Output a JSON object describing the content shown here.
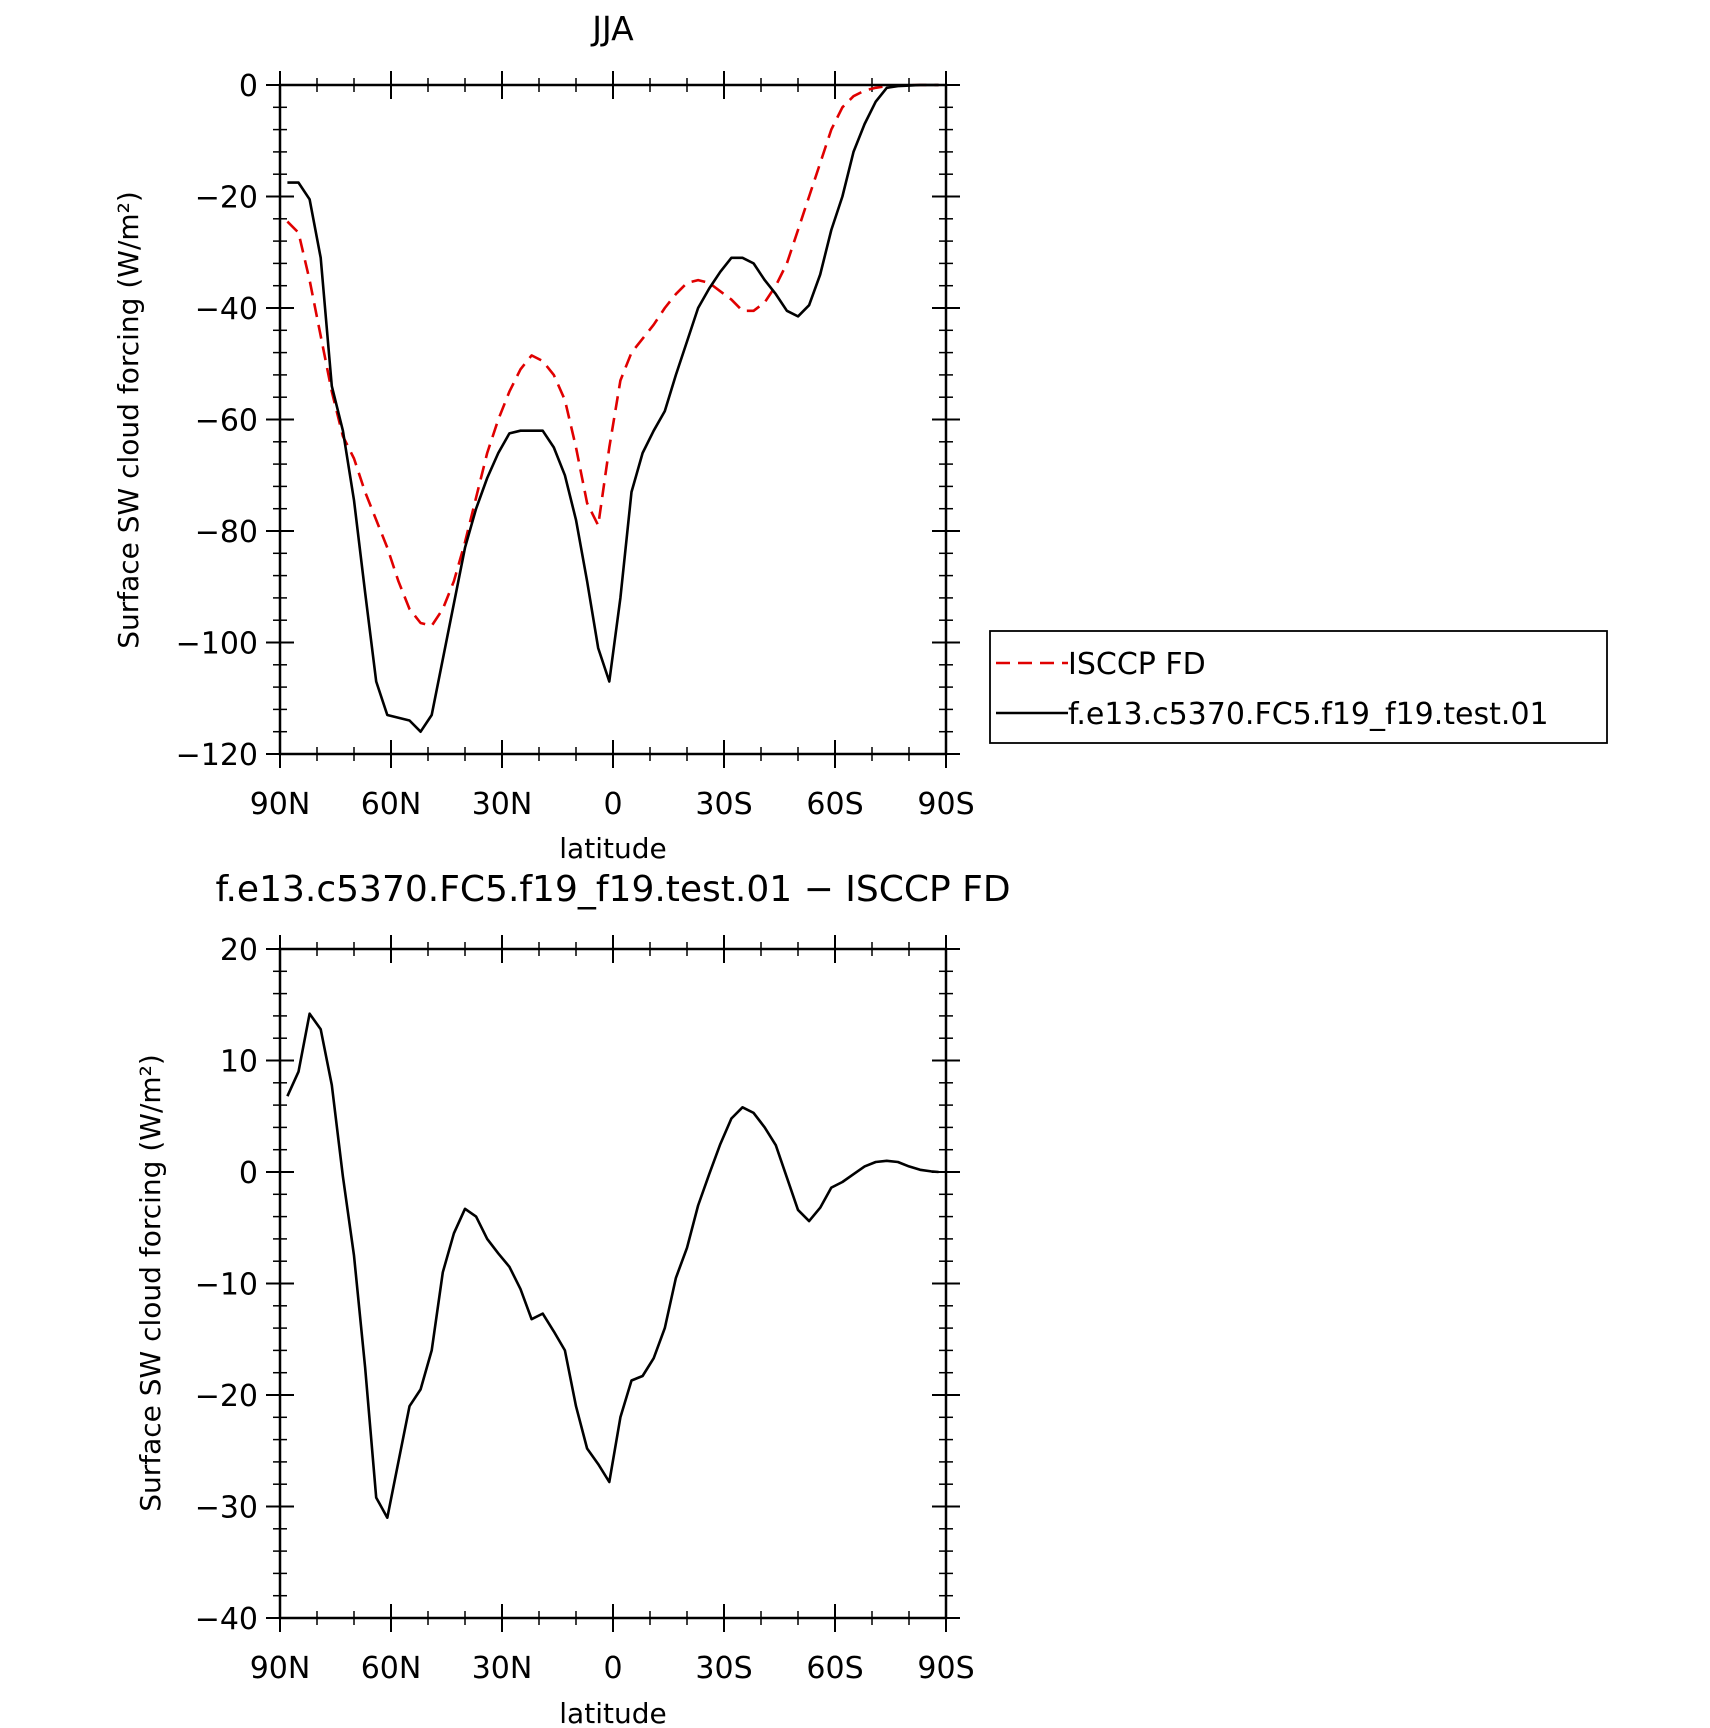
{
  "chart_data": [
    {
      "type": "line",
      "title": "JJA",
      "xlabel": "latitude",
      "ylabel": "Surface SW cloud forcing (W/m²)",
      "xlim": [
        90,
        -90
      ],
      "ylim": [
        -120,
        0
      ],
      "xticks": [
        90,
        60,
        30,
        0,
        -30,
        -60,
        -90
      ],
      "xtick_labels": [
        "90N",
        "60N",
        "30N",
        "0",
        "30S",
        "60S",
        "90S"
      ],
      "yticks": [
        0,
        -20,
        -40,
        -60,
        -80,
        -100,
        -120
      ],
      "ytick_labels": [
        "0",
        "−20",
        "−40",
        "−60",
        "−80",
        "−100",
        "−120"
      ],
      "legend_position": "right",
      "series": [
        {
          "name": "ISCCP FD",
          "color": "#e00000",
          "dash": "dashed",
          "x": [
            88,
            85,
            82,
            79,
            76,
            73,
            70,
            67,
            64,
            61,
            58,
            55,
            52,
            49,
            46,
            43,
            40,
            37,
            34,
            31,
            28,
            25,
            22,
            19,
            16,
            13,
            10,
            7,
            4,
            1,
            -2,
            -5,
            -8,
            -11,
            -14,
            -17,
            -20,
            -23,
            -26,
            -29,
            -32,
            -35,
            -38,
            -41,
            -44,
            -47,
            -50,
            -53,
            -56,
            -59,
            -62,
            -65,
            -68,
            -71,
            -74,
            -77,
            -80,
            -83,
            -86,
            -88
          ],
          "y": [
            -24.5,
            -26.5,
            -35,
            -45,
            -55,
            -63,
            -67,
            -73,
            -78,
            -83,
            -89,
            -94,
            -96.5,
            -97,
            -94,
            -89,
            -82,
            -74,
            -66,
            -60,
            -55,
            -51,
            -48.5,
            -49.5,
            -52,
            -56.5,
            -65,
            -75,
            -79,
            -65,
            -53,
            -48,
            -45.5,
            -43,
            -40,
            -37.5,
            -35.5,
            -35,
            -35.5,
            -37,
            -38.5,
            -40.5,
            -40.5,
            -39,
            -36,
            -32,
            -26,
            -20,
            -14,
            -8,
            -4,
            -2,
            -1,
            -0.5,
            -0.2,
            -0.1,
            -0.05,
            0,
            0,
            0
          ]
        },
        {
          "name": "f.e13.c5370.FC5.f19_f19.test.01",
          "color": "#000000",
          "dash": "solid",
          "x": [
            88,
            85,
            82,
            79,
            76,
            73,
            70,
            67,
            64,
            61,
            58,
            55,
            52,
            49,
            46,
            43,
            40,
            37,
            34,
            31,
            28,
            25,
            22,
            19,
            16,
            13,
            10,
            7,
            4,
            1,
            -2,
            -5,
            -8,
            -11,
            -14,
            -17,
            -20,
            -23,
            -26,
            -29,
            -32,
            -35,
            -38,
            -41,
            -44,
            -47,
            -50,
            -53,
            -56,
            -59,
            -62,
            -65,
            -68,
            -71,
            -74,
            -77,
            -80,
            -83,
            -86,
            -88
          ],
          "y": [
            -17.5,
            -17.5,
            -20.5,
            -31,
            -54,
            -62,
            -74.5,
            -91,
            -107,
            -113,
            -113.5,
            -114,
            -116,
            -113,
            -103,
            -93,
            -83,
            -76,
            -70.5,
            -66,
            -62.5,
            -62,
            -62,
            -62,
            -65,
            -70,
            -78,
            -89,
            -101,
            -107,
            -92,
            -73,
            -66,
            -62,
            -58.5,
            -52,
            -46,
            -40,
            -36.5,
            -33.5,
            -31,
            -31,
            -32,
            -35,
            -37.5,
            -40.5,
            -41.5,
            -39.5,
            -34,
            -26,
            -20,
            -12,
            -7,
            -3,
            -0.5,
            -0.2,
            -0.1,
            0,
            0,
            0
          ]
        }
      ]
    },
    {
      "type": "line",
      "title": "f.e13.c5370.FC5.f19_f19.test.01 − ISCCP FD",
      "xlabel": "latitude",
      "ylabel": "Surface SW cloud forcing (W/m²)",
      "xlim": [
        90,
        -90
      ],
      "ylim": [
        -40,
        20
      ],
      "xticks": [
        90,
        60,
        30,
        0,
        -30,
        -60,
        -90
      ],
      "xtick_labels": [
        "90N",
        "60N",
        "30N",
        "0",
        "30S",
        "60S",
        "90S"
      ],
      "yticks": [
        20,
        10,
        0,
        -10,
        -20,
        -30,
        -40
      ],
      "ytick_labels": [
        "20",
        "10",
        "0",
        "−10",
        "−20",
        "−30",
        "−40"
      ],
      "series": [
        {
          "color": "#000000",
          "dash": "solid",
          "x": [
            88,
            85,
            82,
            79,
            76,
            73,
            70,
            67,
            64,
            61,
            58,
            55,
            52,
            49,
            46,
            43,
            40,
            37,
            34,
            31,
            28,
            25,
            22,
            19,
            16,
            13,
            10,
            7,
            4,
            1,
            -2,
            -5,
            -8,
            -11,
            -14,
            -17,
            -20,
            -23,
            -26,
            -29,
            -32,
            -35,
            -38,
            -41,
            -44,
            -47,
            -50,
            -53,
            -56,
            -59,
            -62,
            -65,
            -68,
            -71,
            -74,
            -77,
            -80,
            -83,
            -86,
            -88
          ],
          "y": [
            6.8,
            9,
            14.2,
            12.8,
            7.8,
            -0.4,
            -7.5,
            -17.5,
            -29.2,
            -31,
            -26,
            -21,
            -19.5,
            -16,
            -9,
            -5.5,
            -3.3,
            -4,
            -6,
            -7.3,
            -8.5,
            -10.5,
            -13.2,
            -12.7,
            -14.3,
            -16,
            -21,
            -24.8,
            -26.2,
            -27.8,
            -22,
            -18.7,
            -18.3,
            -16.7,
            -14,
            -9.5,
            -6.8,
            -3,
            -0.2,
            2.5,
            4.8,
            5.8,
            5.3,
            4,
            2.4,
            -0.5,
            -3.4,
            -4.4,
            -3.2,
            -1.4,
            -0.9,
            -0.2,
            0.5,
            0.9,
            1,
            0.9,
            0.5,
            0.2,
            0.05,
            0
          ]
        }
      ]
    }
  ]
}
